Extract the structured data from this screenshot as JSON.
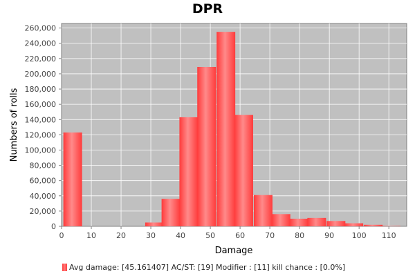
{
  "chart_data": {
    "type": "bar",
    "title": "DPR",
    "xlabel": "Damage",
    "ylabel": "Numbers of rolls",
    "xlim": [
      0,
      116
    ],
    "ylim": [
      0,
      266000
    ],
    "x_ticks": [
      0,
      10,
      20,
      30,
      40,
      50,
      60,
      70,
      80,
      90,
      100,
      110
    ],
    "y_ticks": [
      0,
      20000,
      40000,
      60000,
      80000,
      100000,
      120000,
      140000,
      160000,
      180000,
      200000,
      220000,
      240000,
      260000
    ],
    "x_tick_labels": [
      "0",
      "10",
      "20",
      "30",
      "40",
      "50",
      "60",
      "70",
      "80",
      "90",
      "100",
      "110"
    ],
    "y_tick_labels": [
      "0",
      "20,000",
      "40,000",
      "60,000",
      "80,000",
      "100,000",
      "120,000",
      "140,000",
      "160,000",
      "180,000",
      "200,000",
      "220,000",
      "240,000",
      "260,000"
    ],
    "bin_width": 6.5,
    "bins": [
      {
        "x0": 0.5,
        "value": 123000
      },
      {
        "x0": 28,
        "value": 5000
      },
      {
        "x0": 33.5,
        "value": 36000
      },
      {
        "x0": 39.5,
        "value": 143000
      },
      {
        "x0": 45.5,
        "value": 209000
      },
      {
        "x0": 52,
        "value": 255000
      },
      {
        "x0": 58,
        "value": 146000
      },
      {
        "x0": 64.5,
        "value": 41000
      },
      {
        "x0": 70.5,
        "value": 16000
      },
      {
        "x0": 76.5,
        "value": 10000
      },
      {
        "x0": 82.5,
        "value": 11000
      },
      {
        "x0": 89,
        "value": 7000
      },
      {
        "x0": 95,
        "value": 4000
      },
      {
        "x0": 101.5,
        "value": 2000
      },
      {
        "x0": 107.5,
        "value": 500
      }
    ],
    "grid": true,
    "legend_position": "bottom",
    "series": [
      {
        "name": "Avg damage: [45.161407] AC/ST: [19] Modifier : [11] kill chance : [0.0%]",
        "color": "#ff5555"
      }
    ],
    "colors": {
      "plot_background": "#c0c0c0",
      "bar": "#ff5555",
      "bar_highlight": "#ff8c8c",
      "grid": "#ffffff"
    }
  }
}
